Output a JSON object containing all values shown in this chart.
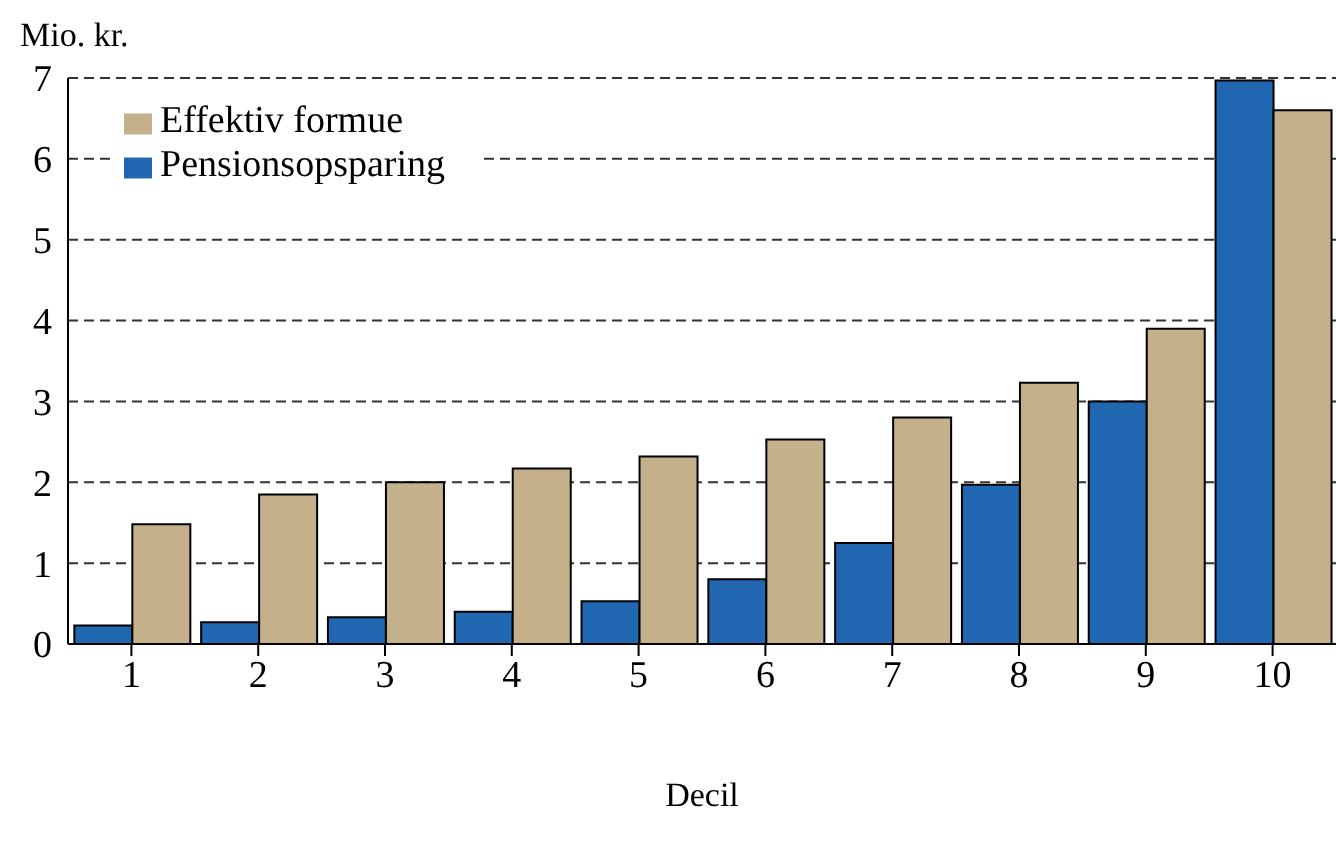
{
  "chart_data": {
    "type": "bar",
    "ylabel": "Mio. kr.",
    "xlabel": "Decil",
    "categories": [
      "1",
      "2",
      "3",
      "4",
      "5",
      "6",
      "7",
      "8",
      "9",
      "10"
    ],
    "series": [
      {
        "name": "Pensionsopsparing",
        "color": "#2166b0",
        "values": [
          0.23,
          0.27,
          0.33,
          0.4,
          0.53,
          0.8,
          1.25,
          1.97,
          3.0,
          6.97
        ]
      },
      {
        "name": "Effektiv formue",
        "color": "#c4b08a",
        "values": [
          1.48,
          1.85,
          2.0,
          2.17,
          2.32,
          2.53,
          2.8,
          3.23,
          3.9,
          6.6
        ]
      }
    ],
    "ylim": [
      0,
      7
    ],
    "yticks": [
      0,
      1,
      2,
      3,
      4,
      5,
      6,
      7
    ],
    "grid": "y",
    "legend": "top left"
  }
}
